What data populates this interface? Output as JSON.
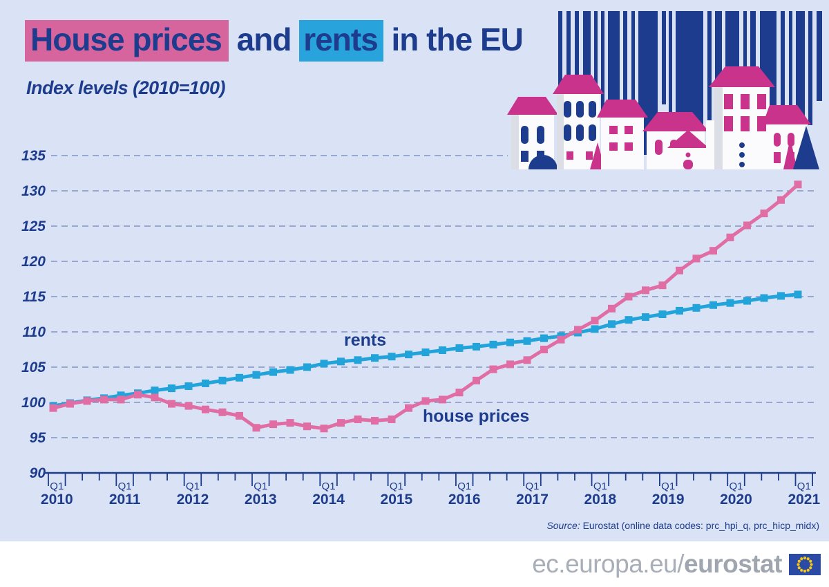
{
  "title": {
    "highlight_pink": "House prices",
    "middle": " and ",
    "highlight_blue": "rents",
    "suffix": " in the EU"
  },
  "subtitle": "Index levels (2010=100)",
  "source": {
    "label": "Source:",
    "text": " Eurostat (online data codes: prc_hpi_q, prc_hicp_midx)"
  },
  "footer": {
    "url_regular": "ec.europa.eu/",
    "url_bold": "eurostat",
    "flag_icon": "eu-flag"
  },
  "illustration_icon": "houses-with-barcode",
  "colors": {
    "background": "#d9e3f5",
    "navy": "#1e3c8e",
    "pink_highlight": "#d7659d",
    "blue_highlight": "#29a3db",
    "pink_line": "#e06ea4",
    "blue_line": "#22a4db",
    "gridline": "#8393c2",
    "roof_pink": "#c9338b",
    "footer_gray": "#a9afb8",
    "flag_blue": "#2b4aa5",
    "flag_star_yellow": "#f5c814"
  },
  "chart_data": {
    "type": "line",
    "title": "House prices and rents in the EU",
    "x_unit": "quarter",
    "x_start": "2010-Q1",
    "x_end": "2021-Q1",
    "years": [
      "2010",
      "2011",
      "2012",
      "2013",
      "2014",
      "2015",
      "2016",
      "2017",
      "2018",
      "2019",
      "2020",
      "2021"
    ],
    "quarter_tick_label": "Q1",
    "ylim": [
      90,
      135
    ],
    "yticks": [
      90,
      95,
      100,
      105,
      110,
      115,
      120,
      125,
      130,
      135
    ],
    "grid": "horizontal-dashed",
    "legend_position": "inline-labels",
    "series": [
      {
        "name": "rents",
        "color": "#22a4db",
        "values": [
          99.5,
          99.9,
          100.3,
          100.6,
          101.0,
          101.3,
          101.7,
          102.0,
          102.3,
          102.7,
          103.1,
          103.5,
          103.9,
          104.3,
          104.6,
          105.0,
          105.5,
          105.8,
          106.0,
          106.3,
          106.5,
          106.8,
          107.1,
          107.4,
          107.7,
          107.9,
          108.2,
          108.5,
          108.7,
          109.1,
          109.4,
          109.9,
          110.4,
          111.1,
          111.7,
          112.1,
          112.5,
          113.0,
          113.4,
          113.8,
          114.1,
          114.4,
          114.8,
          115.1,
          115.3
        ]
      },
      {
        "name": "house prices",
        "color": "#e06ea4",
        "values": [
          99.2,
          99.8,
          100.2,
          100.4,
          100.4,
          101.1,
          100.7,
          99.8,
          99.5,
          99.0,
          98.6,
          98.1,
          96.4,
          96.9,
          97.1,
          96.6,
          96.3,
          97.1,
          97.6,
          97.4,
          97.6,
          99.2,
          100.2,
          100.4,
          101.4,
          103.1,
          104.7,
          105.4,
          106.0,
          107.5,
          108.9,
          110.3,
          111.6,
          113.3,
          115.0,
          115.9,
          116.6,
          118.7,
          120.4,
          121.5,
          123.4,
          125.1,
          126.8,
          128.7,
          130.9
        ]
      }
    ]
  }
}
